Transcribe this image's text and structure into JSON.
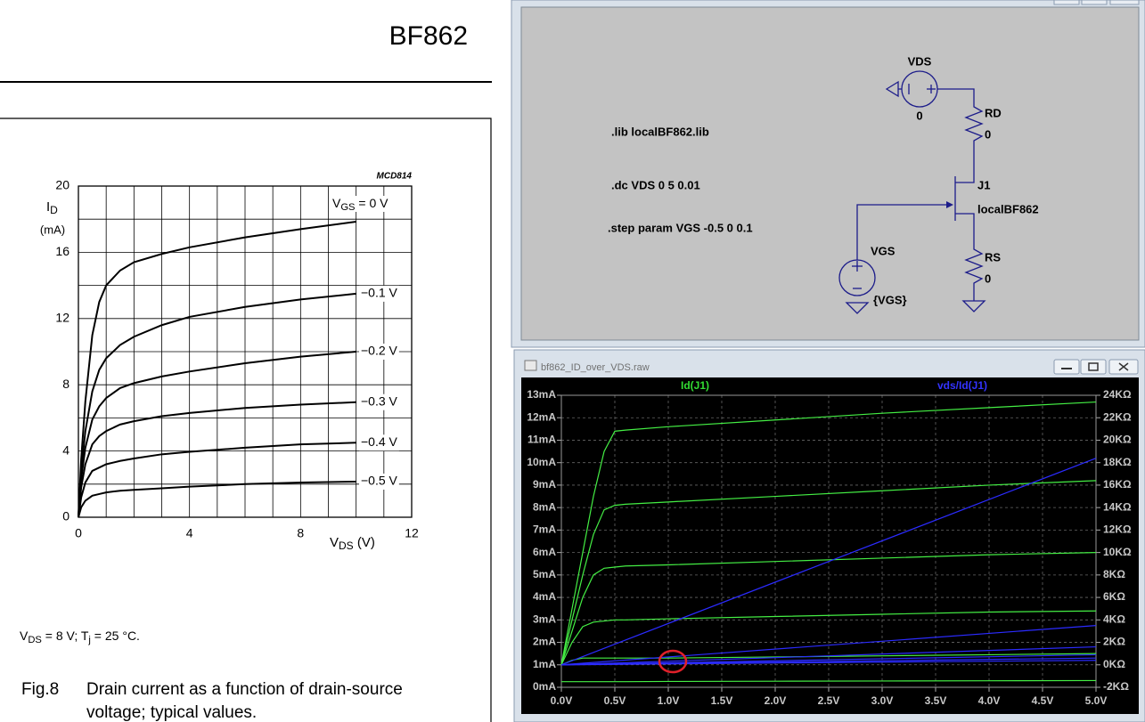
{
  "datasheet": {
    "title": "BF862",
    "chart_data": {
      "type": "line",
      "code": "MCD814",
      "y_label_parts": [
        "I",
        "D"
      ],
      "y_label_unit": "(mA)",
      "x_label_parts": [
        "V",
        "DS",
        " (V)"
      ],
      "xlim": [
        0,
        12
      ],
      "ylim": [
        0,
        20
      ],
      "xticks": [
        0,
        4,
        8,
        12
      ],
      "yticks": [
        0,
        4,
        8,
        12,
        16,
        20
      ],
      "x_grid": [
        0,
        1,
        2,
        3,
        4,
        5,
        6,
        7,
        8,
        9,
        10,
        11,
        12
      ],
      "y_grid": [
        0,
        2,
        4,
        6,
        8,
        10,
        12,
        14,
        16,
        18,
        20
      ],
      "color": "#000000",
      "series": [
        {
          "name_parts": [
            "V",
            "GS",
            " = 0 V"
          ],
          "x": [
            0,
            0.1,
            0.25,
            0.5,
            0.75,
            1,
            1.5,
            2,
            3,
            4,
            6,
            8,
            10
          ],
          "values": [
            0,
            3.5,
            7,
            11,
            13,
            14,
            14.9,
            15.4,
            15.9,
            16.3,
            16.9,
            17.4,
            17.85
          ]
        },
        {
          "name": "−0.1 V",
          "x": [
            0,
            0.1,
            0.25,
            0.5,
            0.75,
            1,
            1.5,
            2,
            3,
            4,
            6,
            8,
            10
          ],
          "values": [
            0,
            2.8,
            5.2,
            7.6,
            8.9,
            9.6,
            10.4,
            10.9,
            11.6,
            12.1,
            12.7,
            13.15,
            13.5
          ]
        },
        {
          "name": "−0.2 V",
          "x": [
            0,
            0.1,
            0.25,
            0.5,
            0.75,
            1,
            1.5,
            2,
            3,
            4,
            6,
            8,
            10
          ],
          "values": [
            0,
            2.3,
            4.2,
            5.9,
            6.7,
            7.2,
            7.8,
            8.1,
            8.5,
            8.8,
            9.3,
            9.7,
            10.0
          ]
        },
        {
          "name": "−0.3 V",
          "x": [
            0,
            0.1,
            0.25,
            0.5,
            0.75,
            1,
            1.5,
            2,
            3,
            4,
            6,
            8,
            10
          ],
          "values": [
            0,
            1.8,
            3.2,
            4.4,
            4.9,
            5.2,
            5.6,
            5.8,
            6.1,
            6.3,
            6.6,
            6.8,
            6.95
          ]
        },
        {
          "name": "−0.4 V",
          "x": [
            0,
            0.1,
            0.25,
            0.5,
            0.75,
            1,
            1.5,
            2,
            3,
            4,
            6,
            8,
            10
          ],
          "values": [
            0,
            1.2,
            2.1,
            2.8,
            3.0,
            3.2,
            3.4,
            3.55,
            3.8,
            3.95,
            4.2,
            4.4,
            4.5
          ]
        },
        {
          "name": "−0.5 V",
          "x": [
            0,
            0.1,
            0.25,
            0.5,
            0.75,
            1,
            1.5,
            2,
            3,
            4,
            6,
            8,
            10
          ],
          "values": [
            0,
            0.6,
            1.0,
            1.3,
            1.4,
            1.5,
            1.6,
            1.65,
            1.75,
            1.85,
            2.0,
            2.1,
            2.15
          ]
        }
      ]
    },
    "conditions": [
      "V",
      "DS",
      " = 8 V; T",
      "j",
      " = 25 °C."
    ],
    "caption": {
      "number": "Fig.8",
      "lines": [
        "Drain current as a function of drain-source",
        "voltage; typical values."
      ]
    }
  },
  "schematic": {
    "directives": [
      ".lib localBF862.lib",
      ".dc VDS 0 5 0.01",
      ".step param VGS -0.5 0 0.1"
    ],
    "components": {
      "vds": {
        "name": "VDS",
        "value": "0"
      },
      "rd": {
        "name": "RD",
        "value": "0"
      },
      "j1": {
        "name": "J1",
        "value": "localBF862"
      },
      "vgs": {
        "name": "VGS",
        "value": "{VGS}"
      },
      "rs": {
        "name": "RS",
        "value": "0"
      }
    }
  },
  "plot_window": {
    "title": "bf862_ID_over_VDS.raw",
    "chart_data": {
      "type": "line",
      "trace_labels": [
        {
          "name": "Id(J1)",
          "color": "#33dd33"
        },
        {
          "name": "vds/Id(J1)",
          "color": "#3333ff"
        }
      ],
      "xlim": [
        0,
        5
      ],
      "ylim": [
        0,
        13
      ],
      "y2lim": [
        -2,
        24
      ],
      "xticks": [
        {
          "value": 0,
          "label": "0.0V"
        },
        {
          "value": 0.5,
          "label": "0.5V"
        },
        {
          "value": 1,
          "label": "1.0V"
        },
        {
          "value": 1.5,
          "label": "1.5V"
        },
        {
          "value": 2,
          "label": "2.0V"
        },
        {
          "value": 2.5,
          "label": "2.5V"
        },
        {
          "value": 3,
          "label": "3.0V"
        },
        {
          "value": 3.5,
          "label": "3.5V"
        },
        {
          "value": 4,
          "label": "4.0V"
        },
        {
          "value": 4.5,
          "label": "4.5V"
        },
        {
          "value": 5,
          "label": "5.0V"
        }
      ],
      "yticks": [
        {
          "value": 0,
          "label": "0mA"
        },
        {
          "value": 1,
          "label": "1mA"
        },
        {
          "value": 2,
          "label": "2mA"
        },
        {
          "value": 3,
          "label": "3mA"
        },
        {
          "value": 4,
          "label": "4mA"
        },
        {
          "value": 5,
          "label": "5mA"
        },
        {
          "value": 6,
          "label": "6mA"
        },
        {
          "value": 7,
          "label": "7mA"
        },
        {
          "value": 8,
          "label": "8mA"
        },
        {
          "value": 9,
          "label": "9mA"
        },
        {
          "value": 10,
          "label": "10mA"
        },
        {
          "value": 11,
          "label": "11mA"
        },
        {
          "value": 12,
          "label": "12mA"
        },
        {
          "value": 13,
          "label": "13mA"
        }
      ],
      "y2ticks": [
        {
          "value": -2,
          "label": "-2KΩ"
        },
        {
          "value": 0,
          "label": "0KΩ"
        },
        {
          "value": 2,
          "label": "2KΩ"
        },
        {
          "value": 4,
          "label": "4KΩ"
        },
        {
          "value": 6,
          "label": "6KΩ"
        },
        {
          "value": 8,
          "label": "8KΩ"
        },
        {
          "value": 10,
          "label": "10KΩ"
        },
        {
          "value": 12,
          "label": "12KΩ"
        },
        {
          "value": 14,
          "label": "14KΩ"
        },
        {
          "value": 16,
          "label": "16KΩ"
        },
        {
          "value": 18,
          "label": "18KΩ"
        },
        {
          "value": 20,
          "label": "20KΩ"
        },
        {
          "value": 22,
          "label": "22KΩ"
        },
        {
          "value": 24,
          "label": "24KΩ"
        }
      ],
      "grid": true,
      "series": [
        {
          "color": "#44ee44",
          "x": [
            0,
            0.1,
            0.2,
            0.3,
            0.4,
            0.5,
            0.6,
            1,
            2,
            3,
            4,
            5
          ],
          "values": [
            1,
            3.5,
            6,
            8.5,
            10.5,
            11.4,
            11.45,
            11.6,
            11.9,
            12.2,
            12.45,
            12.7
          ]
        },
        {
          "color": "#44ee44",
          "x": [
            0,
            0.1,
            0.2,
            0.3,
            0.4,
            0.5,
            0.6,
            1,
            2,
            3,
            4,
            5
          ],
          "values": [
            1,
            3,
            5,
            6.8,
            7.9,
            8.1,
            8.15,
            8.25,
            8.5,
            8.75,
            9.0,
            9.2
          ]
        },
        {
          "color": "#44ee44",
          "x": [
            0,
            0.1,
            0.2,
            0.3,
            0.4,
            0.5,
            0.6,
            1,
            2,
            3,
            4,
            5
          ],
          "values": [
            1,
            2.5,
            4,
            5,
            5.3,
            5.35,
            5.4,
            5.45,
            5.6,
            5.75,
            5.9,
            6.0
          ]
        },
        {
          "color": "#44ee44",
          "x": [
            0,
            0.1,
            0.2,
            0.3,
            0.4,
            0.5,
            0.6,
            1,
            2,
            3,
            4,
            5
          ],
          "values": [
            1,
            2,
            2.7,
            2.9,
            2.95,
            3.0,
            3.0,
            3.05,
            3.15,
            3.25,
            3.35,
            3.4
          ]
        },
        {
          "color": "#44ee44",
          "x": [
            0,
            0.1,
            0.2,
            0.3,
            0.4,
            0.5,
            0.6,
            1,
            2,
            3,
            4,
            5
          ],
          "values": [
            1,
            1.2,
            1.3,
            1.3,
            1.3,
            1.3,
            1.3,
            1.3,
            1.35,
            1.4,
            1.45,
            1.5
          ]
        },
        {
          "color": "#44ee44",
          "x": [
            0,
            0.1,
            0.2,
            0.3,
            0.4,
            0.5,
            0.6,
            1,
            2,
            3,
            4,
            5
          ],
          "values": [
            0.25,
            0.25,
            0.25,
            0.25,
            0.25,
            0.25,
            0.25,
            0.26,
            0.27,
            0.28,
            0.29,
            0.3
          ]
        },
        {
          "color": "#2b2bff",
          "axis": "y2",
          "x": [
            0,
            5
          ],
          "values": [
            0,
            18.4
          ]
        },
        {
          "color": "#2b2bff",
          "axis": "y2",
          "x": [
            0,
            5
          ],
          "values": [
            0,
            3.5
          ]
        },
        {
          "color": "#2b2bff",
          "axis": "y2",
          "x": [
            0,
            5
          ],
          "values": [
            0,
            1.6
          ]
        },
        {
          "color": "#2b2bff",
          "axis": "y2",
          "x": [
            0,
            5
          ],
          "values": [
            0,
            0.9
          ]
        },
        {
          "color": "#2b2bff",
          "axis": "y2",
          "x": [
            0,
            5
          ],
          "values": [
            0,
            0.6
          ]
        },
        {
          "color": "#2b2bff",
          "axis": "y2",
          "x": [
            0,
            5
          ],
          "values": [
            0,
            0.4
          ]
        }
      ]
    }
  }
}
